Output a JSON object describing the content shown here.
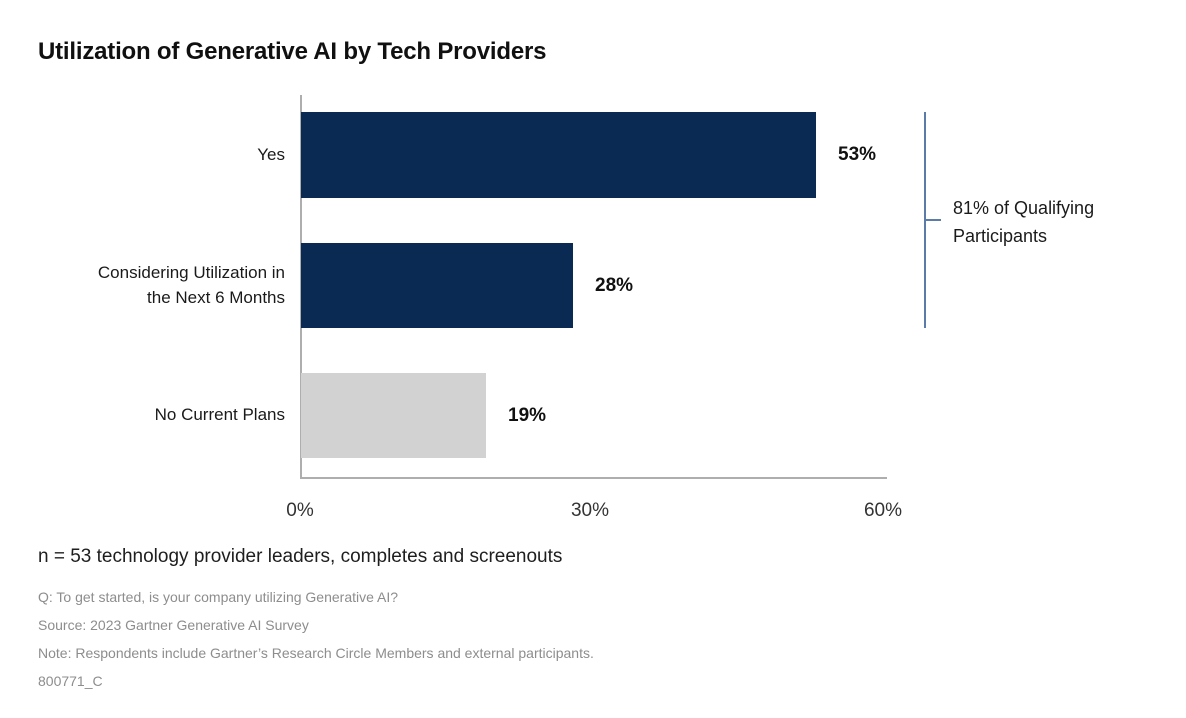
{
  "title": "Utilization of Generative AI by Tech Providers",
  "chart_data": {
    "type": "bar",
    "orientation": "horizontal",
    "title": "Utilization of Generative AI by Tech Providers",
    "categories": [
      "Yes",
      "Considering Utilization in the Next 6 Months",
      "No Current Plans"
    ],
    "values": [
      53,
      28,
      19
    ],
    "value_labels": [
      "53%",
      "28%",
      "19%"
    ],
    "unit": "%",
    "xlabel": "",
    "ylabel": "",
    "xlim": [
      0,
      60
    ],
    "x_tick_labels": [
      "0%",
      "30%",
      "60%"
    ],
    "bar_colors": [
      "#0b2a53",
      "#0b2a53",
      "#d2d2d2"
    ],
    "grid": false,
    "legend": null,
    "annotation": {
      "label": "81% of Qualifying Participants",
      "covers_categories": [
        "Yes",
        "Considering Utilization in the Next 6 Months"
      ],
      "line_color": "#5b7ba8"
    }
  },
  "sample_note": "n = 53 technology provider leaders, completes and screenouts",
  "footnotes": {
    "question": "Q: To get started, is your company utilizing Generative AI?",
    "source": "Source: 2023 Gartner Generative AI Survey",
    "note": "Note: Respondents include Gartner’s Research Circle Members and external participants.",
    "id": "800771_C"
  },
  "colors": {
    "navy": "#0b2a53",
    "gray_bar": "#d2d2d2",
    "axis": "#aeaeae",
    "bracket": "#5b7ba8",
    "footnote_text": "#8d8d8d"
  }
}
